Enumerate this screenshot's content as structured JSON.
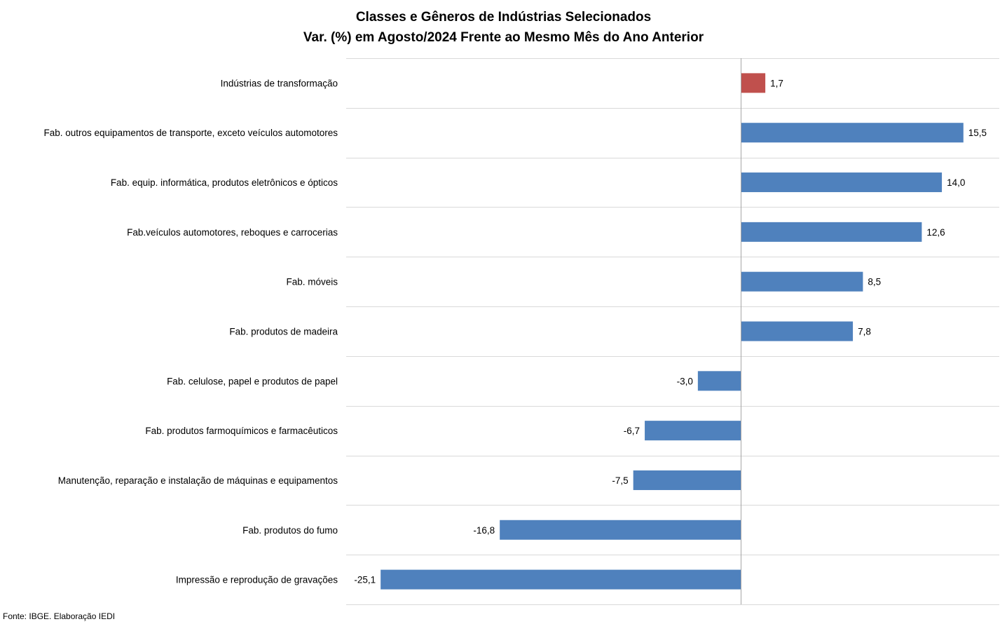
{
  "chart_data": {
    "type": "bar",
    "orientation": "horizontal",
    "title": "Classes e Gêneros de Indústrias Selecionados",
    "subtitle": "Var. (%) em Agosto/2024 Frente ao Mesmo Mês do Ano Anterior",
    "categories": [
      "Indústrias de transformação",
      "Fab. outros equipamentos de transporte, exceto veículos automotores",
      "Fab. equip. informática, produtos eletrônicos e ópticos",
      "Fab.veículos automotores, reboques e carrocerias",
      "Fab. móveis",
      "Fab. produtos de madeira",
      "Fab. celulose, papel e produtos de papel",
      "Fab. produtos farmoquímicos e farmacêuticos",
      "Manutenção, reparação e instalação de máquinas e equipamentos",
      "Fab. produtos do fumo",
      "Impressão e reprodução de gravações"
    ],
    "values": [
      1.7,
      15.5,
      14.0,
      12.6,
      8.5,
      7.8,
      -3.0,
      -6.7,
      -7.5,
      -16.8,
      -25.1
    ],
    "value_labels": [
      "1,7",
      "15,5",
      "14,0",
      "12,6",
      "8,5",
      "7,8",
      "-3,0",
      "-6,7",
      "-7,5",
      "-16,8",
      "-25,1"
    ],
    "xlim": [
      -27.5,
      18.0
    ],
    "grid": true,
    "highlight_index": 0,
    "colors": {
      "default": "#4f81bd",
      "highlight": "#c0504d",
      "grid": "#d9d9d9",
      "axis": "#a6a6a6"
    }
  },
  "source": "Fonte: IBGE. Elaboração IEDI"
}
